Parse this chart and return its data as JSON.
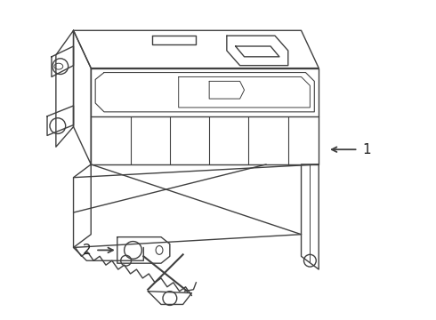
{
  "background_color": "#ffffff",
  "line_color": "#404040",
  "line_width": 1.0,
  "figsize": [
    4.9,
    3.6
  ],
  "dpi": 100,
  "label1_text": "1",
  "label2_text": "2"
}
